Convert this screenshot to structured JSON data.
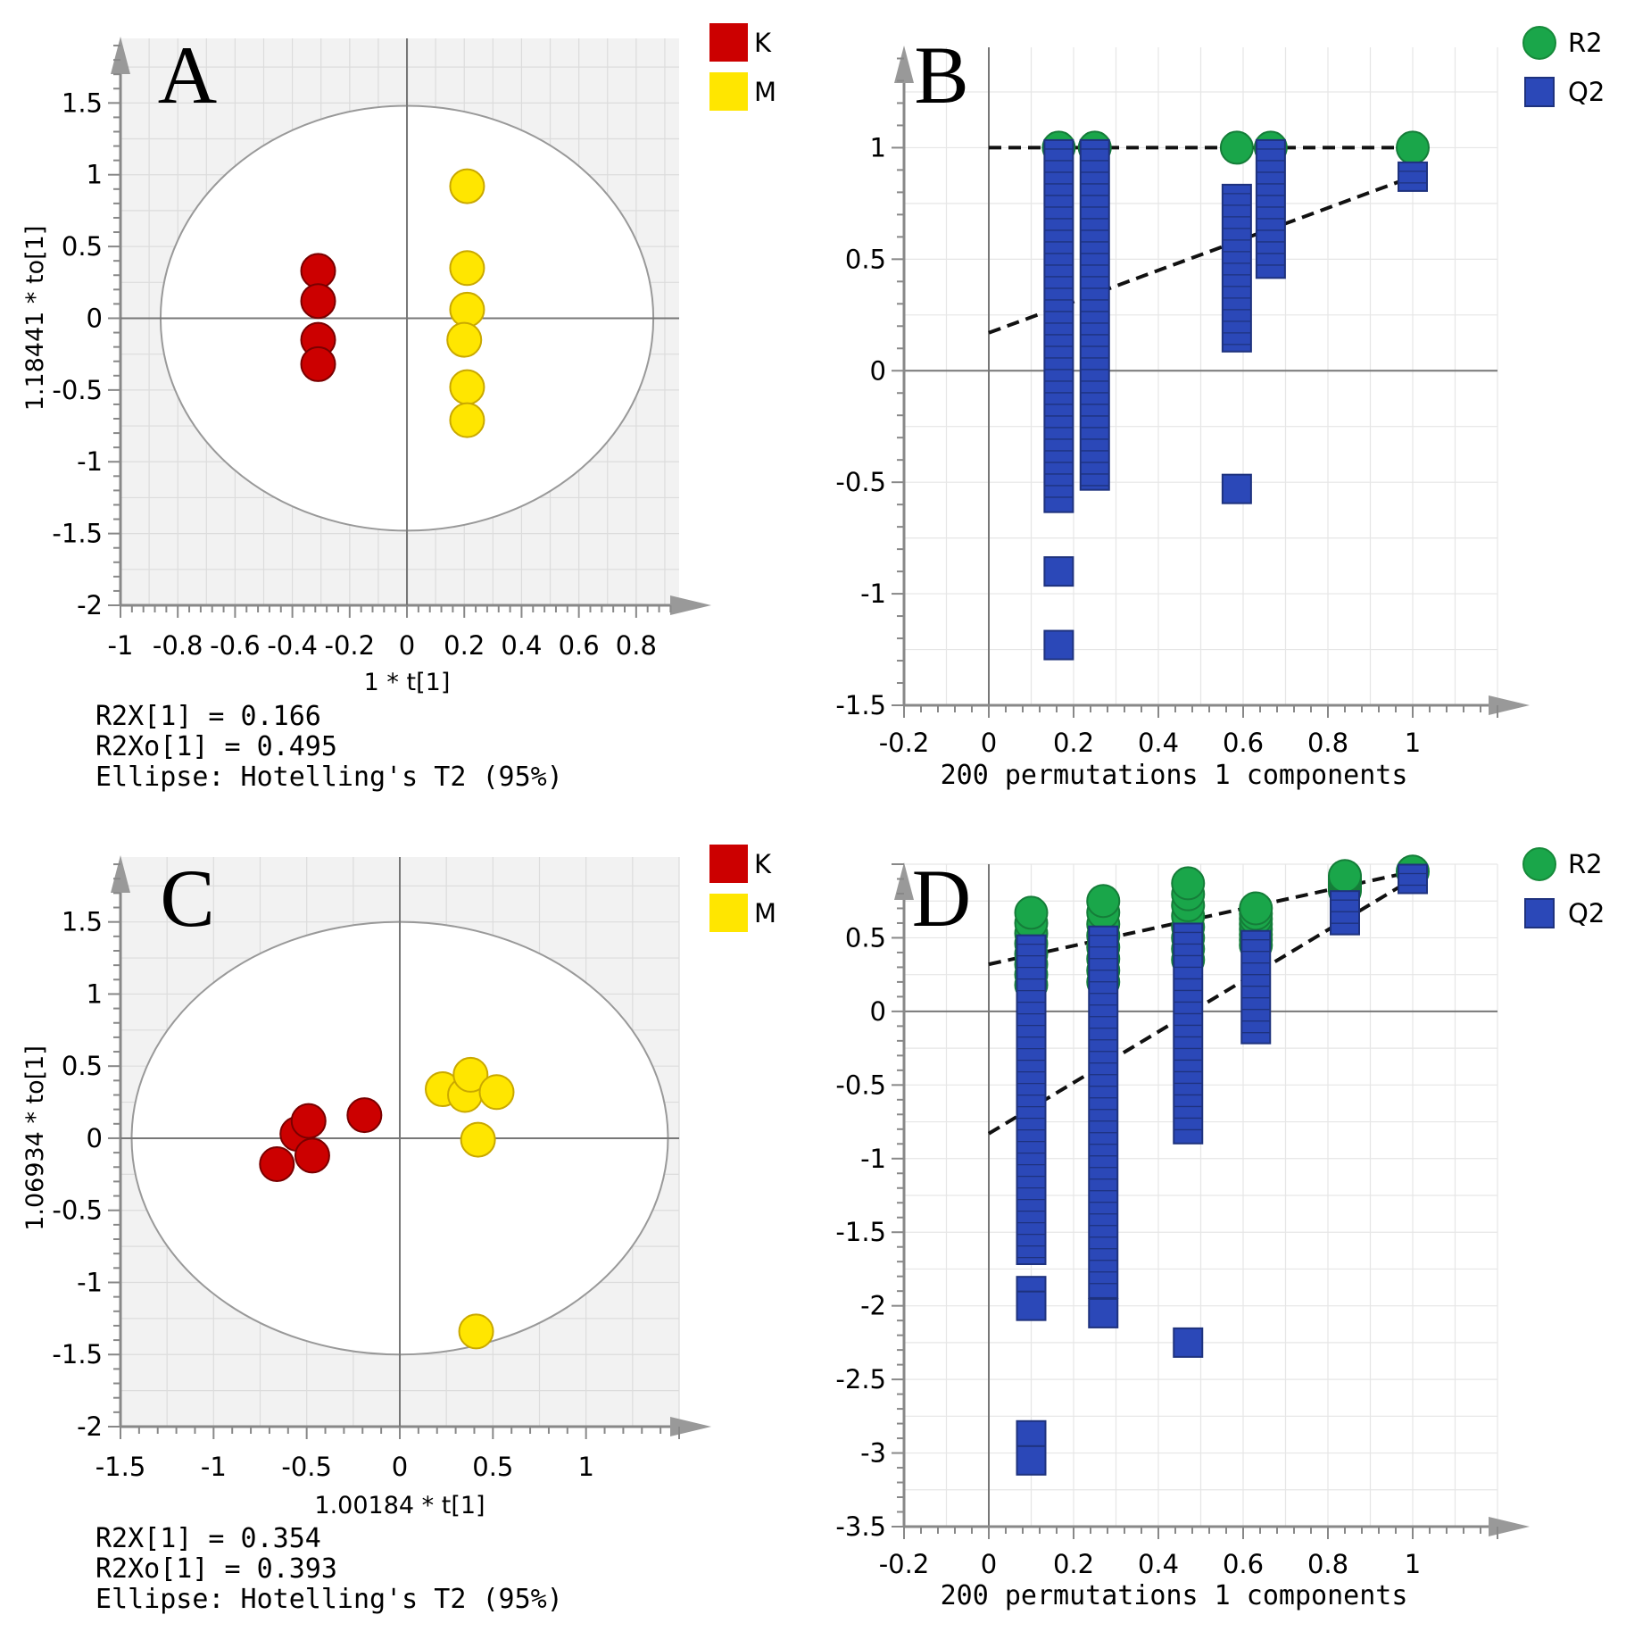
{
  "chart_data": [
    {
      "panel": "A",
      "type": "scatter",
      "xlabel": "1 * t[1]",
      "ylabel": "1.18441 * to[1]",
      "xlim": [
        -1,
        0.95
      ],
      "ylim": [
        -2,
        1.95
      ],
      "xticks": [
        -1,
        -0.8,
        -0.6,
        -0.4,
        -0.2,
        0,
        0.2,
        0.4,
        0.6,
        0.8
      ],
      "yticks": [
        -2,
        -1.5,
        -1,
        -0.5,
        0,
        0.5,
        1,
        1.5
      ],
      "ellipse": {
        "rx": 0.86,
        "ry": 1.48
      },
      "legend": [
        {
          "label": "K",
          "color": "#cc0000"
        },
        {
          "label": "M",
          "color": "#ffe600"
        }
      ],
      "series": [
        {
          "name": "K",
          "color": "#cc0000",
          "points": [
            [
              -0.31,
              0.33
            ],
            [
              -0.31,
              0.12
            ],
            [
              -0.31,
              -0.15
            ],
            [
              -0.31,
              -0.32
            ]
          ]
        },
        {
          "name": "M",
          "color": "#ffe600",
          "points": [
            [
              0.21,
              0.92
            ],
            [
              0.21,
              0.35
            ],
            [
              0.21,
              0.06
            ],
            [
              0.2,
              -0.15
            ],
            [
              0.21,
              -0.48
            ],
            [
              0.21,
              -0.71
            ]
          ]
        }
      ],
      "annotations": [
        "R2X[1] = 0.166",
        "R2Xo[1] = 0.495",
        "Ellipse: Hotelling's T2 (95%)"
      ]
    },
    {
      "panel": "B",
      "type": "scatter",
      "xlabel": "200 permutations 1 components",
      "xlim": [
        -0.2,
        1.2
      ],
      "ylim": [
        -1.5,
        1.45
      ],
      "xticks": [
        -0.2,
        0,
        0.2,
        0.4,
        0.6,
        0.8,
        1
      ],
      "yticks": [
        -1.5,
        -1,
        -0.5,
        0,
        0.5,
        1
      ],
      "legend": [
        {
          "label": "R2",
          "color": "#1aa64a",
          "marker": "circle"
        },
        {
          "label": "Q2",
          "color": "#2b48b8",
          "marker": "square"
        }
      ],
      "r2_points": [
        [
          0.165,
          1.0
        ],
        [
          0.25,
          1.0
        ],
        [
          0.585,
          1.0
        ],
        [
          0.665,
          1.0
        ],
        [
          1.0,
          1.0
        ]
      ],
      "q2_columns": [
        {
          "x": 0.165,
          "range": [
            -0.57,
            0.97
          ],
          "outliers": [
            -0.9,
            -1.23
          ]
        },
        {
          "x": 0.25,
          "range": [
            -0.47,
            0.97
          ],
          "outliers": []
        },
        {
          "x": 0.585,
          "range": [
            0.15,
            0.77
          ],
          "outliers": [
            -0.53
          ]
        },
        {
          "x": 0.665,
          "range": [
            0.48,
            0.97
          ],
          "outliers": []
        },
        {
          "x": 1.0,
          "range": [
            0.87,
            0.87
          ],
          "outliers": []
        }
      ],
      "r2_line": {
        "intercept": 1.0,
        "end": 1.0
      },
      "q2_line": {
        "intercept": 0.17,
        "end": 0.87
      }
    },
    {
      "panel": "C",
      "type": "scatter",
      "xlabel": "1.00184 * t[1]",
      "ylabel": "1.06934 * to[1]",
      "xlim": [
        -1.5,
        1.5
      ],
      "ylim": [
        -2,
        1.95
      ],
      "xticks": [
        -1.5,
        -1,
        -0.5,
        0,
        0.5,
        1
      ],
      "yticks": [
        -2,
        -1.5,
        -1,
        -0.5,
        0,
        0.5,
        1,
        1.5
      ],
      "ellipse": {
        "rx": 1.44,
        "ry": 1.5
      },
      "legend": [
        {
          "label": "K",
          "color": "#cc0000"
        },
        {
          "label": "M",
          "color": "#ffe600"
        }
      ],
      "series": [
        {
          "name": "K",
          "color": "#cc0000",
          "points": [
            [
              -0.66,
              -0.18
            ],
            [
              -0.55,
              0.03
            ],
            [
              -0.49,
              0.12
            ],
            [
              -0.47,
              -0.12
            ],
            [
              -0.19,
              0.16
            ]
          ]
        },
        {
          "name": "M",
          "color": "#ffe600",
          "points": [
            [
              0.23,
              0.34
            ],
            [
              0.35,
              0.3
            ],
            [
              0.38,
              0.44
            ],
            [
              0.52,
              0.32
            ],
            [
              0.42,
              -0.01
            ],
            [
              0.41,
              -1.34
            ]
          ]
        }
      ],
      "annotations": [
        "R2X[1] = 0.354",
        "R2Xo[1] = 0.393",
        "Ellipse: Hotelling's T2 (95%)"
      ]
    },
    {
      "panel": "D",
      "type": "scatter",
      "xlabel": "200 permutations 1 components",
      "xlim": [
        -0.2,
        1.2
      ],
      "ylim": [
        -3.5,
        1.0
      ],
      "xticks": [
        -0.2,
        0,
        0.2,
        0.4,
        0.6,
        0.8,
        1
      ],
      "yticks": [
        -3.5,
        -3,
        -2.5,
        -2,
        -1.5,
        -1,
        -0.5,
        0,
        0.5
      ],
      "legend": [
        {
          "label": "R2",
          "color": "#1aa64a",
          "marker": "circle"
        },
        {
          "label": "Q2",
          "color": "#2b48b8",
          "marker": "square"
        }
      ],
      "r2_columns": [
        {
          "x": 0.1,
          "range": [
            0.18,
            0.67
          ]
        },
        {
          "x": 0.27,
          "range": [
            0.2,
            0.75
          ]
        },
        {
          "x": 0.47,
          "range": [
            0.35,
            0.87
          ]
        },
        {
          "x": 0.63,
          "range": [
            0.45,
            0.7
          ]
        },
        {
          "x": 0.84,
          "range": [
            0.82,
            0.92
          ]
        },
        {
          "x": 1.0,
          "range": [
            0.95,
            0.95
          ]
        }
      ],
      "q2_columns": [
        {
          "x": 0.1,
          "range": [
            -1.62,
            0.42
          ],
          "outliers": [
            -1.9,
            -2.0,
            -2.88,
            -3.05
          ]
        },
        {
          "x": 0.27,
          "range": [
            -1.85,
            0.48
          ],
          "outliers": [
            -2.05
          ]
        },
        {
          "x": 0.47,
          "range": [
            -0.8,
            0.5
          ],
          "outliers": [
            -2.25
          ]
        },
        {
          "x": 0.63,
          "range": [
            -0.12,
            0.45
          ],
          "outliers": []
        },
        {
          "x": 0.84,
          "range": [
            0.62,
            0.72
          ],
          "outliers": []
        },
        {
          "x": 1.0,
          "range": [
            0.9,
            0.9
          ],
          "outliers": []
        }
      ],
      "r2_line": {
        "intercept": 0.32,
        "end": 0.95
      },
      "q2_line": {
        "intercept": -0.83,
        "end": 0.9
      }
    }
  ]
}
